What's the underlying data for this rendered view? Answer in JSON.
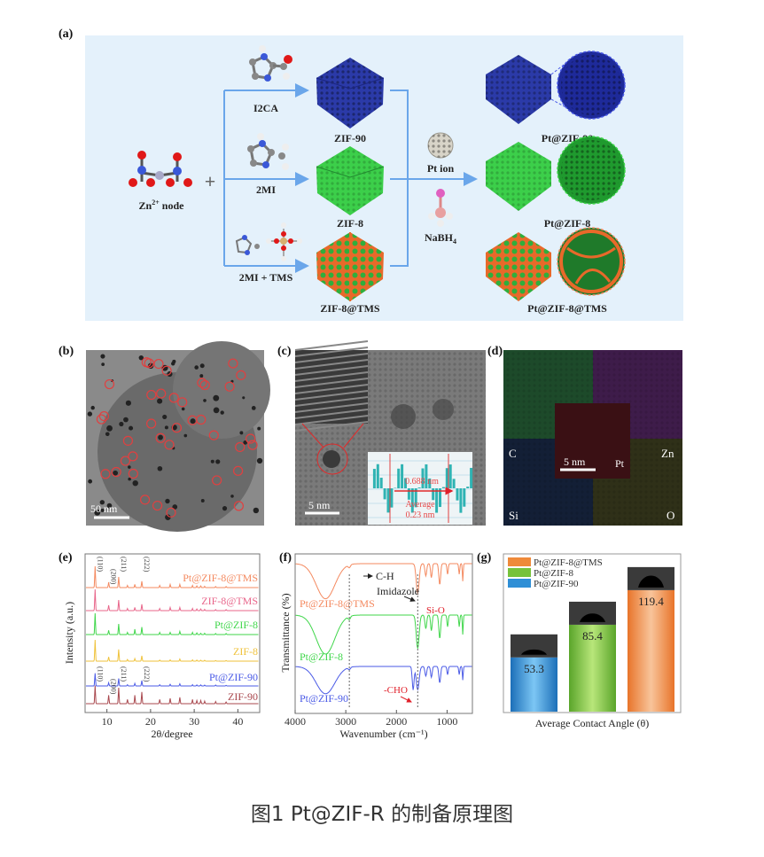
{
  "figure": {
    "caption": "图1 Pt@ZIF-R 的制备原理图",
    "panel_labels": {
      "a": "(a)",
      "b": "(b)",
      "c": "(c)",
      "d": "(d)",
      "e": "(e)",
      "f": "(f)",
      "g": "(g)"
    }
  },
  "scheme": {
    "node_label": "Zn",
    "node_sup": "2+",
    "node_suffix": " node",
    "plus": "+",
    "linkers": [
      "I2CA",
      "2MI",
      "2MI + TMS"
    ],
    "frameworks": [
      "ZIF-90",
      "ZIF-8",
      "ZIF-8@TMS"
    ],
    "reagent_1": "Pt ion",
    "reagent_2": "NaBH",
    "reagent_2_sub": "4",
    "products": [
      "Pt@ZIF-90",
      "Pt@ZIF-8",
      "Pt@ZIF-8@TMS"
    ],
    "colors": {
      "zif90": "#2b3aa8",
      "zif8": "#3ccf4a",
      "tms": "#e8692a",
      "arrow": "#6aa6ea",
      "bg": "#e4f1fb"
    }
  },
  "tem_b": {
    "scale_bar": "50 nm"
  },
  "tem_c": {
    "scale_bar": "5 nm",
    "spacing": "0.688 nm",
    "average_label": "Average",
    "average_value": "0.23 nm"
  },
  "mapping_d": {
    "elements": [
      "C",
      "Zn",
      "Si",
      "O",
      "Pt"
    ],
    "scale_bar": "5 nm"
  },
  "chart_data": [
    {
      "panel": "e",
      "type": "line",
      "title": "",
      "xlabel": "2θ/degree",
      "ylabel": "Intensity (a.u.)",
      "xlim": [
        5,
        45
      ],
      "xticks": [
        10,
        20,
        30,
        40
      ],
      "peak_positions": [
        7.3,
        10.4,
        12.7,
        14.7,
        16.4,
        18.0,
        22.1,
        24.5,
        26.7,
        29.6,
        30.6,
        31.5,
        32.4,
        34.9,
        37.3
      ],
      "hkl_labels": [
        "(110)",
        "(200)",
        "(211)",
        "(222)"
      ],
      "series": [
        {
          "name": "Pt@ZIF-8@TMS",
          "color": "#f4895f",
          "relative_peaks": [
            1.0,
            0.25,
            0.5,
            0.1,
            0.15,
            0.3,
            0.1,
            0.15,
            0.15,
            0.1,
            0.08,
            0.08,
            0.06,
            0.05,
            0.05
          ]
        },
        {
          "name": "ZIF-8@TMS",
          "color": "#e8658a",
          "relative_peaks": [
            1.0,
            0.25,
            0.5,
            0.1,
            0.15,
            0.3,
            0.1,
            0.15,
            0.15,
            0.1,
            0.08,
            0.08,
            0.06,
            0.05,
            0.05
          ]
        },
        {
          "name": "Pt@ZIF-8",
          "color": "#3fd64a",
          "relative_peaks": [
            1.0,
            0.2,
            0.5,
            0.1,
            0.25,
            0.35,
            0.1,
            0.1,
            0.15,
            0.1,
            0.08,
            0.06,
            0.06,
            0.05,
            0.05
          ]
        },
        {
          "name": "ZIF-8",
          "color": "#efc23a",
          "relative_peaks": [
            1.0,
            0.2,
            0.55,
            0.08,
            0.12,
            0.25,
            0.05,
            0.06,
            0.1,
            0.06,
            0.05,
            0.04,
            0.04,
            0.03,
            0.03
          ]
        },
        {
          "name": "Pt@ZIF-90",
          "color": "#4a5ae6",
          "relative_peaks": [
            0.6,
            0.15,
            0.35,
            0.06,
            0.12,
            0.25,
            0.06,
            0.08,
            0.1,
            0.06,
            0.05,
            0.05,
            0.04,
            0.04,
            0.03
          ]
        },
        {
          "name": "ZIF-90",
          "color": "#a8474d",
          "relative_peaks": [
            0.85,
            0.4,
            0.75,
            0.2,
            0.4,
            0.55,
            0.2,
            0.25,
            0.3,
            0.2,
            0.15,
            0.15,
            0.12,
            0.1,
            0.08
          ]
        }
      ]
    },
    {
      "panel": "f",
      "type": "line",
      "title": "",
      "xlabel": "Wavenumber (cm⁻¹)",
      "ylabel": "Transmittance (%)",
      "xlim": [
        4000,
        500
      ],
      "xticks": [
        4000,
        3000,
        2000,
        1000
      ],
      "bands": [
        [
          3400,
          1.0,
          260
        ],
        [
          2930,
          0.08,
          30
        ],
        [
          1580,
          0.85,
          40
        ],
        [
          1420,
          0.35,
          25
        ],
        [
          1310,
          0.4,
          22
        ],
        [
          1145,
          0.6,
          25
        ],
        [
          990,
          0.3,
          18
        ],
        [
          760,
          0.3,
          15
        ],
        [
          690,
          0.5,
          12
        ]
      ],
      "annotations": [
        "C-H",
        "Imidazole",
        "Si-O",
        "-CHO"
      ],
      "annotation_color": "#e0202a",
      "series": [
        {
          "name": "Pt@ZIF-8@TMS",
          "color": "#f4895f",
          "strength": 0.9
        },
        {
          "name": "Pt@ZIF-8",
          "color": "#3fd64a",
          "strength": 1.0
        },
        {
          "name": "Pt@ZIF-90",
          "color": "#4a5ae6",
          "strength": 0.7
        }
      ]
    },
    {
      "panel": "g",
      "type": "bar",
      "title": "",
      "xlabel": "Average Contact Angle (θ)",
      "ylabel": "",
      "categories": [
        "Pt@ZIF-90",
        "Pt@ZIF-8",
        "Pt@ZIF-8@TMS"
      ],
      "values": [
        53.3,
        85.4,
        119.4
      ],
      "value_labels": [
        "53.3",
        "85.4",
        "119.4"
      ],
      "colors": [
        "#2f8fd6",
        "#76c23a",
        "#ef8a3a"
      ],
      "ylim": [
        0,
        155
      ],
      "legend": {
        "placement": "top-left",
        "entries": [
          "Pt@ZIF-8@TMS",
          "Pt@ZIF-8",
          "Pt@ZIF-90"
        ]
      }
    }
  ]
}
